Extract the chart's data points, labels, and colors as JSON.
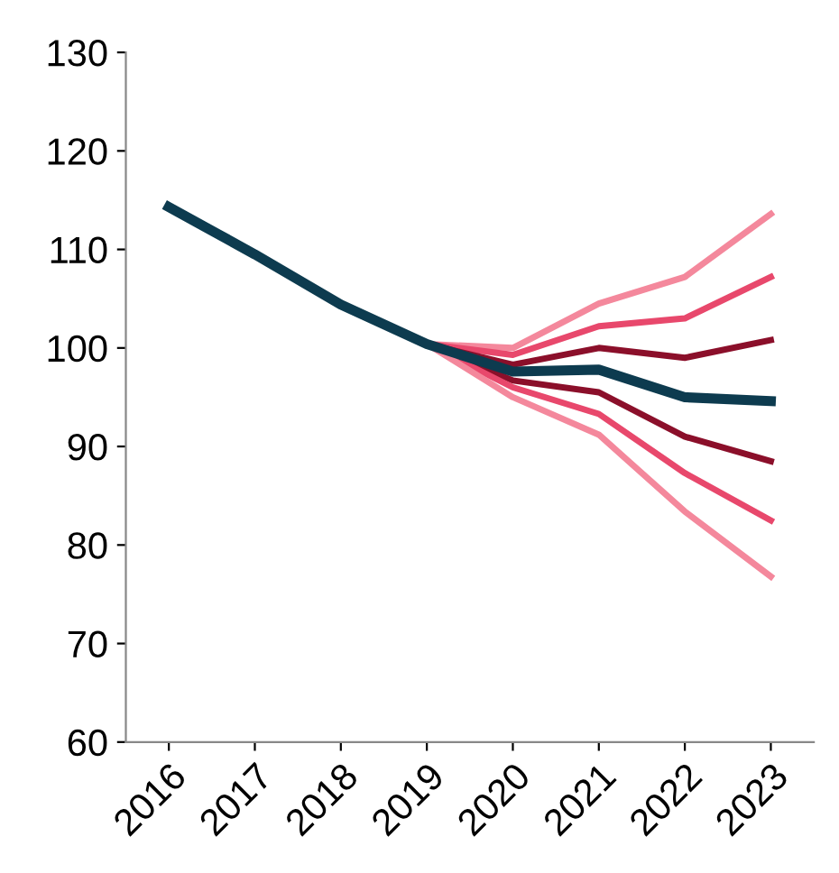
{
  "chart_data": {
    "type": "line",
    "categories": [
      "2016",
      "2017",
      "2018",
      "2019",
      "2020",
      "2021",
      "2022",
      "2023"
    ],
    "ylim": [
      60,
      130
    ],
    "yticks": [
      60,
      70,
      80,
      90,
      100,
      110,
      120,
      130
    ],
    "grid": false,
    "legend": false,
    "marker": "none",
    "line_style": "solid",
    "series": [
      {
        "color": "#f4889c",
        "values": [
          null,
          null,
          null,
          100.4,
          100.0,
          104.5,
          107.2,
          113.6
        ]
      },
      {
        "color": "#e8486c",
        "values": [
          null,
          null,
          null,
          100.4,
          99.3,
          102.2,
          103.0,
          107.2
        ]
      },
      {
        "color": "#8b0f2a",
        "values": [
          null,
          null,
          null,
          100.4,
          98.3,
          100.0,
          99.0,
          100.8
        ]
      },
      {
        "color": "#8b0f2a",
        "values": [
          null,
          null,
          null,
          100.4,
          96.7,
          95.5,
          91.0,
          88.5
        ]
      },
      {
        "color": "#e8486c",
        "values": [
          null,
          null,
          null,
          100.4,
          96.0,
          93.3,
          87.3,
          82.5
        ]
      },
      {
        "color": "#f4889c",
        "values": [
          null,
          null,
          null,
          100.4,
          95.0,
          91.2,
          83.4,
          76.8
        ]
      },
      {
        "color": "#0d3b4f",
        "values": [
          114.3,
          109.5,
          104.4,
          100.4,
          97.6,
          97.8,
          95.0,
          94.6
        ]
      }
    ]
  }
}
